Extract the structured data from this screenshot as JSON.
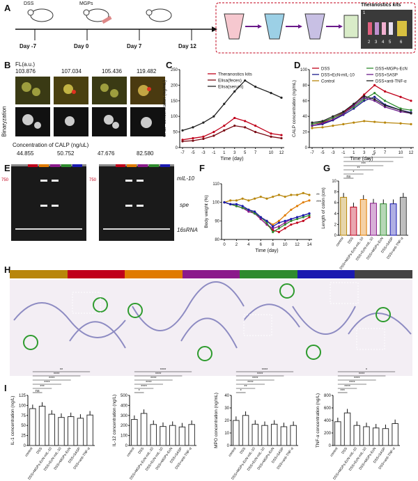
{
  "panels": [
    "A",
    "B",
    "C",
    "D",
    "E",
    "F",
    "G",
    "H",
    "I"
  ],
  "panelA": {
    "timeline": [
      "Day -7",
      "Day 0",
      "Day 7",
      "Day 12"
    ],
    "mouse_labels": [
      "DSS",
      "MGPs"
    ],
    "kit_title": "Theranostics kits",
    "kit_numbers": [
      "1",
      "2",
      "3",
      "4",
      "5",
      "6"
    ]
  },
  "panelB": {
    "fl_label": "FL(a.u.)",
    "fl_values": [
      "103.876",
      "107.034",
      "105.436",
      "119.482"
    ],
    "row_label": "Binaryzation",
    "calp_label": "Concentration of CALP (ng/uL)",
    "calp_values": [
      "44.855",
      "50.752",
      "47.676",
      "82.580"
    ]
  },
  "panelE": {
    "gene_labels": [
      "mIL-10",
      "spe",
      "16sRNA"
    ],
    "marker": "750"
  },
  "panelH": {
    "bar_colors": [
      "#b8860b",
      "#c0001a",
      "#e07b00",
      "#8b1a8b",
      "#2e8b2e",
      "#1a1ab0",
      "#444444"
    ]
  },
  "chart_data": [
    {
      "id": "C",
      "type": "line",
      "xlabel": "Time (day)",
      "ylabel": "CALP concentration (ng/mL)",
      "ylim": [
        0,
        250
      ],
      "yticks": [
        0,
        50,
        100,
        150,
        200,
        250
      ],
      "x": [
        -7,
        -5,
        -3,
        -1,
        1,
        3,
        5,
        7,
        10,
        12
      ],
      "series": [
        {
          "name": "Theranostics kits",
          "color": "#c0001a",
          "values": [
            25,
            30,
            35,
            50,
            70,
            95,
            85,
            70,
            45,
            40
          ]
        },
        {
          "name": "Elisa(feces)",
          "color": "#7a0a14",
          "values": [
            20,
            22,
            28,
            38,
            55,
            70,
            65,
            50,
            35,
            30
          ]
        },
        {
          "name": "Elisa(serum)",
          "color": "#222222",
          "values": [
            55,
            65,
            80,
            100,
            140,
            180,
            215,
            195,
            175,
            160
          ]
        }
      ]
    },
    {
      "id": "D",
      "type": "line",
      "xlabel": "Time (day)",
      "ylabel": "CALP concentration (ng/mL)",
      "ylim": [
        0,
        100
      ],
      "yticks": [
        0,
        20,
        40,
        60,
        80,
        100
      ],
      "x": [
        -7,
        -5,
        -3,
        -1,
        1,
        3,
        5,
        7,
        10,
        12
      ],
      "series": [
        {
          "name": "DSS",
          "color": "#c0001a",
          "values": [
            30,
            32,
            38,
            45,
            55,
            68,
            80,
            72,
            65,
            60
          ]
        },
        {
          "name": "DSS+EcN-mIL-10",
          "color": "#1a1a8c",
          "values": [
            28,
            30,
            35,
            42,
            50,
            60,
            65,
            55,
            48,
            45
          ]
        },
        {
          "name": "Control",
          "color": "#b8860b",
          "values": [
            25,
            26,
            28,
            30,
            32,
            34,
            33,
            32,
            31,
            30
          ]
        },
        {
          "name": "DSS+MGPs-EcN",
          "color": "#2e8b2e",
          "values": [
            30,
            33,
            38,
            44,
            52,
            62,
            70,
            60,
            50,
            48
          ]
        },
        {
          "name": "DSS+SASP",
          "color": "#6a1a8a",
          "values": [
            28,
            31,
            36,
            43,
            54,
            64,
            60,
            52,
            46,
            44
          ]
        },
        {
          "name": "DSS+anti-TNF-α",
          "color": "#222222",
          "values": [
            32,
            34,
            40,
            46,
            56,
            66,
            62,
            54,
            48,
            44
          ]
        }
      ]
    },
    {
      "id": "F",
      "type": "line",
      "xlabel": "Time (day)",
      "ylabel": "Body weight (%)",
      "ylim": [
        80,
        110
      ],
      "yticks": [
        80,
        90,
        100,
        110
      ],
      "xticks": [
        0,
        2,
        4,
        6,
        8,
        10,
        12,
        14
      ],
      "x": [
        0,
        1,
        2,
        3,
        4,
        5,
        6,
        7,
        8,
        9,
        10,
        11,
        12,
        13,
        14
      ],
      "annotations": [
        "**",
        "***"
      ],
      "series": [
        {
          "name": "Control",
          "color": "#b8860b",
          "values": [
            100,
            101,
            101,
            102,
            101,
            102,
            103,
            102,
            103,
            104,
            103,
            104,
            104,
            105,
            104
          ]
        },
        {
          "name": "DSS",
          "color": "#c0001a",
          "values": [
            100,
            99,
            98,
            97,
            96,
            94,
            91,
            88,
            85,
            84,
            86,
            88,
            89,
            90,
            92
          ]
        },
        {
          "name": "DSS+MGPs-EcN",
          "color": "#e07b00",
          "values": [
            100,
            99,
            98,
            97,
            96,
            95,
            92,
            90,
            88,
            90,
            93,
            96,
            98,
            100,
            101
          ]
        },
        {
          "name": "DSS+EcN-mIL-10",
          "color": "#8b1a8b",
          "values": [
            100,
            99,
            98,
            97,
            95,
            94,
            91,
            88,
            86,
            87,
            89,
            91,
            92,
            93,
            94
          ]
        },
        {
          "name": "DSS+SASP",
          "color": "#2e8b2e",
          "values": [
            100,
            99,
            98,
            97,
            96,
            94,
            92,
            89,
            84,
            86,
            88,
            90,
            91,
            92,
            93
          ]
        },
        {
          "name": "DSS+anti-TNF-α",
          "color": "#1a1ab0",
          "values": [
            100,
            99,
            99,
            98,
            96,
            95,
            92,
            90,
            87,
            89,
            90,
            91,
            92,
            93,
            94
          ]
        }
      ]
    },
    {
      "id": "G",
      "type": "bar",
      "ylabel": "Length of colon (cm)",
      "ylim": [
        0,
        10
      ],
      "yticks": [
        0,
        2,
        4,
        6,
        8,
        10
      ],
      "categories": [
        "control",
        "DSS",
        "DSS+MGPs-EcN-mIL-10",
        "DSS+EcN-mIL-10",
        "DSS+MGPs-EcN",
        "DSS+SASP",
        "DSS+anti-TNF-α"
      ],
      "colors": [
        "#b8860b",
        "#c0001a",
        "#e07b00",
        "#8b1a8b",
        "#2e8b2e",
        "#1a1ab0",
        "#444444"
      ],
      "values": [
        7.0,
        5.2,
        6.6,
        5.9,
        5.8,
        5.8,
        7.0
      ],
      "annotations": [
        "ns",
        "*",
        "**",
        "***",
        "**",
        "**"
      ]
    },
    {
      "id": "I1",
      "type": "bar",
      "ylabel": "IL-1 concentration (ng/L)",
      "ylim": [
        0,
        125
      ],
      "yticks": [
        0,
        25,
        50,
        75,
        100,
        125
      ],
      "categories": [
        "control",
        "DSS",
        "DSS+MGPs-EcN-mIL-10",
        "DSS+EcN-mIL-10",
        "DSS+MGPs-EcN",
        "DSS+SASP",
        "DSS+anti-TNF-α"
      ],
      "values": [
        92,
        98,
        78,
        70,
        72,
        68,
        76
      ],
      "annotations": [
        "ns",
        "***",
        "****",
        "****",
        "****",
        "**"
      ]
    },
    {
      "id": "I2",
      "type": "bar",
      "ylabel": "IL-12 concentration (ng/L)",
      "ylim": [
        0,
        500
      ],
      "yticks": [
        0,
        100,
        200,
        300,
        400,
        500
      ],
      "categories": [
        "control",
        "DSS",
        "DSS+MGPs-EcN-mIL-10",
        "DSS+EcN-mIL-10",
        "DSS+MGPs-EcN",
        "DSS+SASP",
        "DSS+anti-TNF-α"
      ],
      "values": [
        260,
        320,
        210,
        190,
        200,
        185,
        210
      ],
      "annotations": [
        "*",
        "****",
        "****",
        "****",
        "****",
        "****"
      ]
    },
    {
      "id": "I3",
      "type": "bar",
      "ylabel": "MPO concentration (ng/mL)",
      "ylim": [
        0,
        40
      ],
      "yticks": [
        0,
        10,
        20,
        30,
        40
      ],
      "categories": [
        "control",
        "DSS",
        "DSS+MGPs-EcN-mIL-10",
        "DSS+EcN-mIL-10",
        "DSS+MGPs-EcN",
        "DSS+SASP",
        "DSS+anti-TNF-α"
      ],
      "values": [
        20,
        24,
        17,
        16,
        17,
        15,
        16
      ],
      "annotations": [
        "*",
        "**",
        "****",
        "****",
        "****",
        "****"
      ]
    },
    {
      "id": "I4",
      "type": "bar",
      "ylabel": "TNF-α concentration (ng/L)",
      "ylim": [
        0,
        800
      ],
      "yticks": [
        0,
        200,
        400,
        600,
        800
      ],
      "categories": [
        "control",
        "DSS",
        "DSS+MGPs-EcN-mIL-10",
        "DSS+EcN-mIL-10",
        "DSS+MGPs-EcN",
        "DSS+SASP",
        "DSS+anti-TNF-α"
      ],
      "values": [
        380,
        520,
        320,
        300,
        280,
        270,
        350
      ],
      "annotations": [
        "***",
        "****",
        "****",
        "****",
        "****",
        "*"
      ]
    }
  ]
}
